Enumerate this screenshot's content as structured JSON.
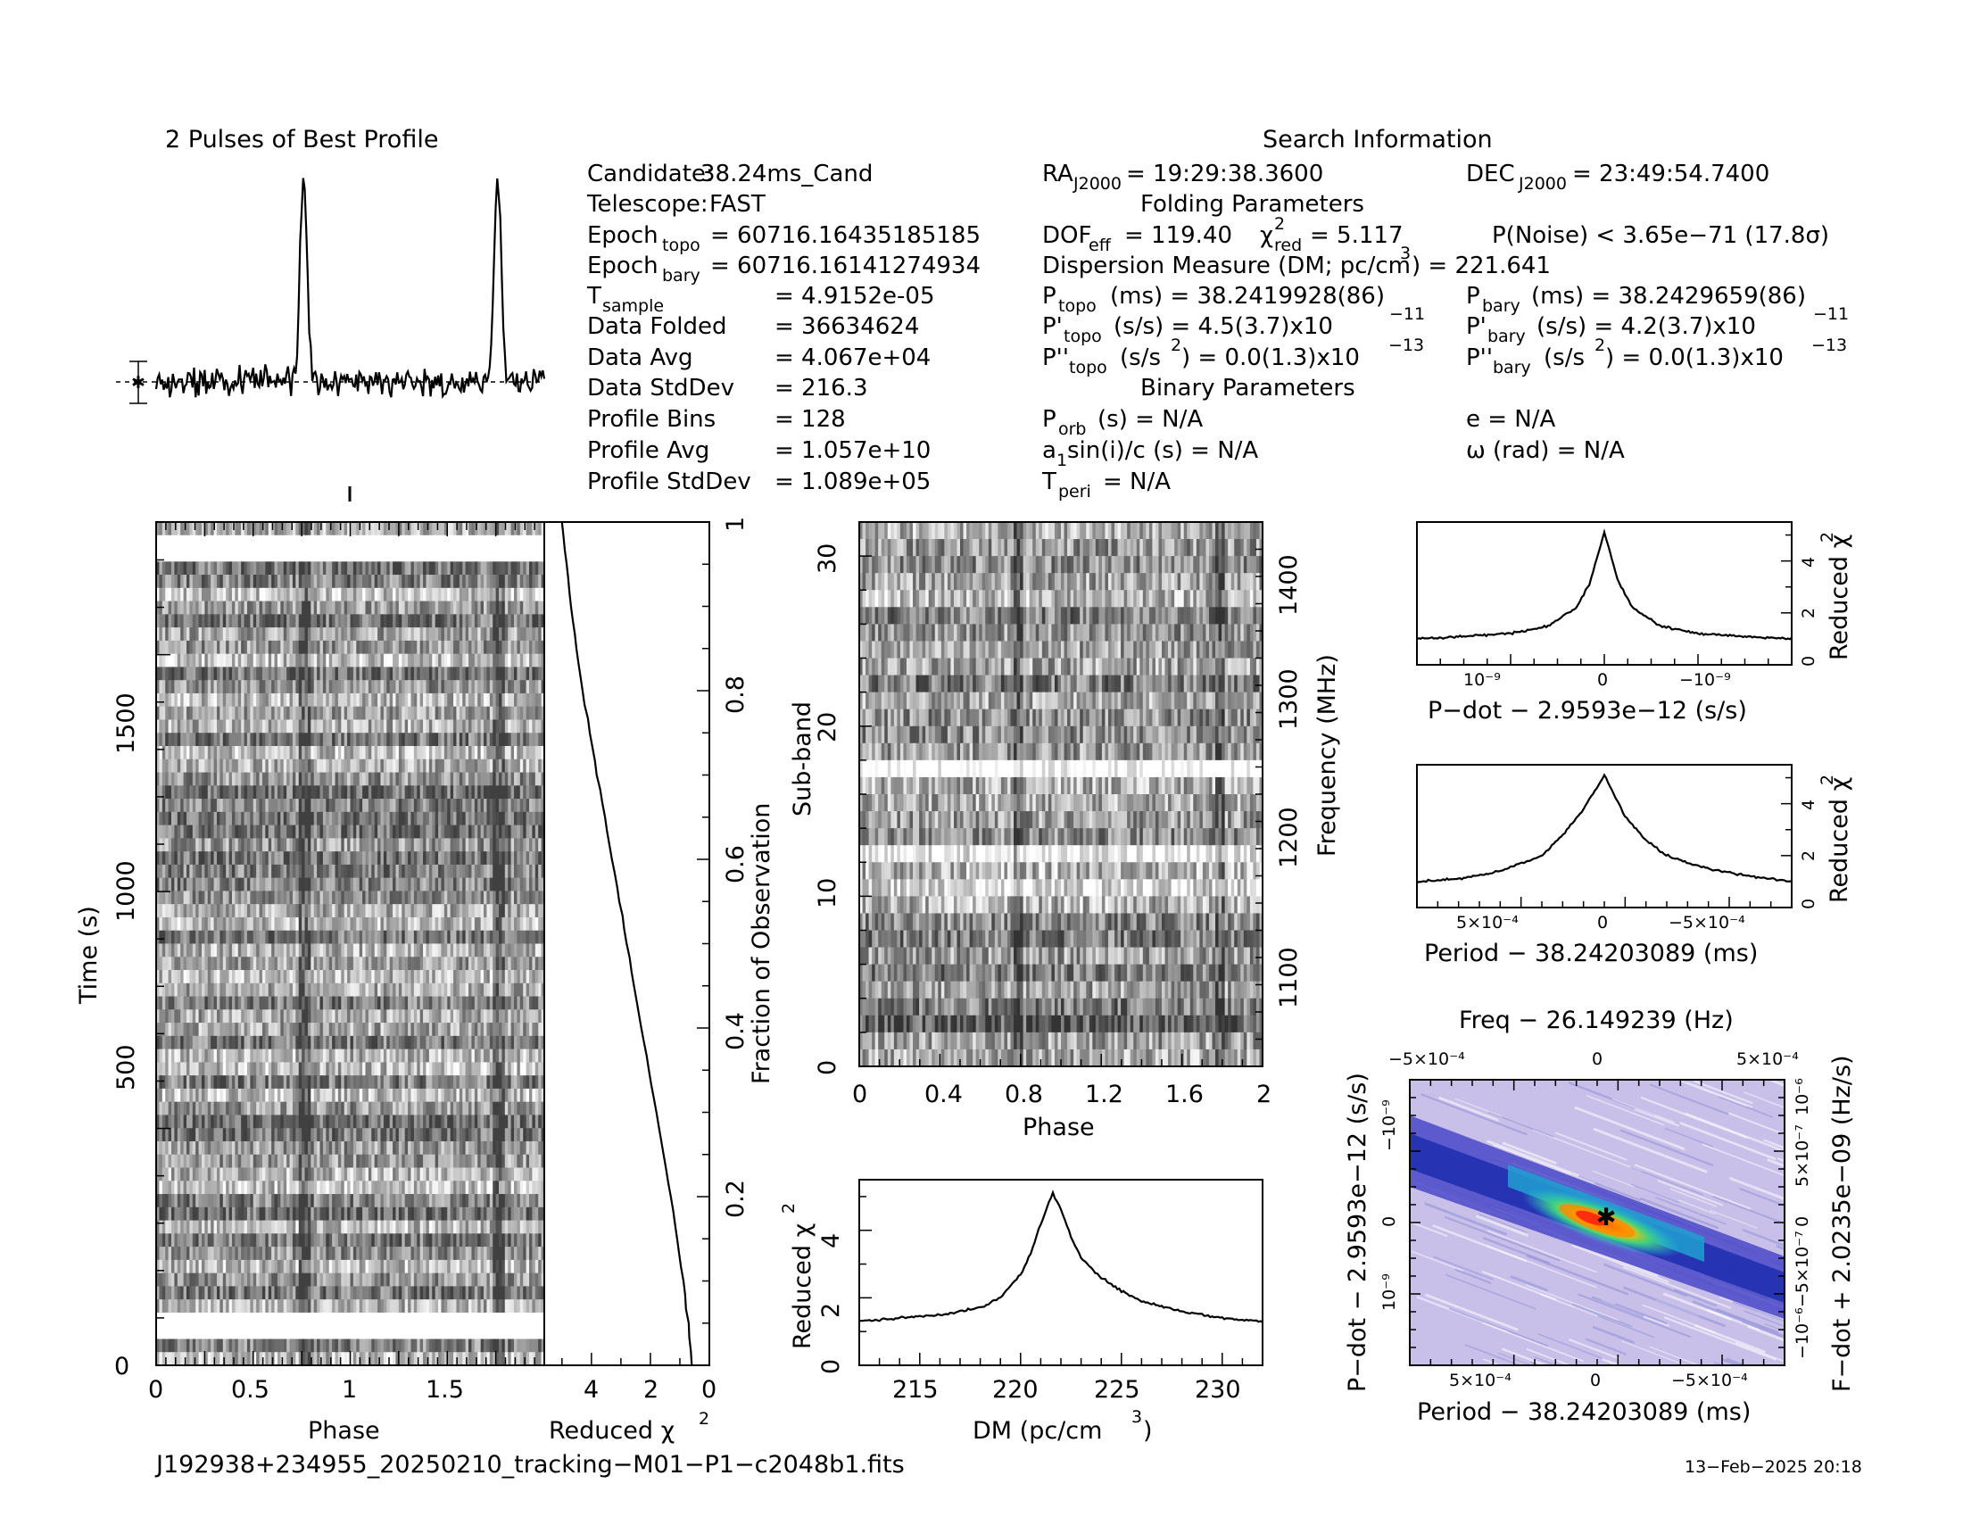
{
  "profile": {
    "title": "2 Pulses of Best Profile"
  },
  "info": {
    "heading": "Search Information",
    "folding_heading": "Folding Parameters",
    "binary_heading": "Binary Parameters",
    "candidate_label": "Candidate:",
    "candidate_value": "38.24ms_Cand",
    "telescope_label": "Telescope:",
    "telescope_value": "FAST",
    "epoch_topo_label": "Epoch",
    "epoch_topo_sub": "topo",
    "epoch_topo_value": "= 60716.16435185185",
    "epoch_bary_label": "Epoch",
    "epoch_bary_sub": "bary",
    "epoch_bary_value": "= 60716.16141274934",
    "tsample_label": "T",
    "tsample_sub": "sample",
    "tsample_value": "=   4.9152e-05",
    "data_folded_label": "Data Folded",
    "data_folded_value": "=   36634624",
    "data_avg_label": "Data Avg",
    "data_avg_value": "=   4.067e+04",
    "data_stddev_label": "Data StdDev",
    "data_stddev_value": "=   216.3",
    "profile_bins_label": "Profile Bins",
    "profile_bins_value": "=   128",
    "profile_avg_label": "Profile Avg",
    "profile_avg_value": "=   1.057e+10",
    "profile_stddev_label": "Profile StdDev",
    "profile_stddev_value": "=   1.089e+05",
    "ra_label": "RA",
    "ra_sub": "J2000",
    "ra_value": "= 19:29:38.3600",
    "dec_label": "DEC",
    "dec_sub": "J2000",
    "dec_value": "= 23:49:54.7400",
    "dof_label": "DOF",
    "dof_sub": "eff",
    "dof_value": "= 119.40",
    "chi_label": "χ",
    "chi_sup": "2",
    "chi_sub": "red",
    "chi_value": "= 5.117",
    "pnoise": "P(Noise) < 3.65e−71   (17.8σ)",
    "dm_text": "Dispersion Measure (DM; pc/cm",
    "dm_sup": "3",
    "dm_value": ") = 221.641",
    "ptopo_label": "P",
    "ptopo_sub": "topo",
    "ptopo_value": "(ms) =   38.2419928(86)",
    "pbary_label": "P",
    "pbary_sub": "bary",
    "pbary_value": "(ms) =   38.2429659(86)",
    "pdtopo_label": "P'",
    "pdtopo_sub": "topo",
    "pdtopo_value": "(s/s) =   4.5(3.7)x10",
    "pdtopo_exp": "−11",
    "pdbary_label": "P'",
    "pdbary_sub": "bary",
    "pdbary_value": "(s/s) =   4.2(3.7)x10",
    "pdbary_exp": "−11",
    "pddtopo_label": "P''",
    "pddtopo_sub": "topo",
    "pddtopo_value": "(s/s",
    "pddtopo_sup": "2",
    "pddtopo_rest": ") = 0.0(1.3)x10",
    "pddtopo_exp": "−13",
    "pddbary_label": "P''",
    "pddbary_sub": "bary",
    "pddbary_value": "(s/s",
    "pddbary_sup": "2",
    "pddbary_rest": ") = 0.0(1.3)x10",
    "pddbary_exp": "−13",
    "porb_label": "P",
    "porb_sub": "orb",
    "porb_value": "(s) = N/A",
    "e_value": "e = N/A",
    "asini_label": "a",
    "asini_sub": "1",
    "asini_value": "sin(i)/c (s) = N/A",
    "omega_value": "ω (rad) = N/A",
    "tperi_label": "T",
    "tperi_sub": "peri",
    "tperi_value": "= N/A"
  },
  "time_phase": {
    "ylabel": "Time (s)",
    "xlabel": "Phase",
    "yticks": [
      "0",
      "500",
      "1000",
      "1500"
    ],
    "xticks": [
      "0",
      "0.5",
      "1",
      "1.5"
    ]
  },
  "chi_time": {
    "xlabel": "Reduced χ",
    "xlabel_sup": "2",
    "xticks": [
      "4",
      "2",
      "0"
    ],
    "right_label": "Fraction of Observation",
    "right_ticks": [
      "0.2",
      "0.4",
      "0.6",
      "0.8",
      "1"
    ]
  },
  "subband": {
    "ylabel": "Sub-band",
    "xlabel": "Phase",
    "yticks": [
      "0",
      "10",
      "20",
      "30"
    ],
    "xticks": [
      "0",
      "0.4",
      "0.8",
      "1.2",
      "1.6",
      "2"
    ],
    "right_label": "Frequency (MHz)",
    "right_ticks": [
      "1100",
      "1200",
      "1300",
      "1400"
    ]
  },
  "dm_plot": {
    "ylabel": "Reduced χ",
    "ylabel_sup": "2",
    "xlabel": "DM (pc/cm",
    "xlabel_sup": "3",
    "xlabel_end": ")",
    "xticks": [
      "215",
      "220",
      "225",
      "230"
    ],
    "yticks": [
      "0",
      "2",
      "4"
    ]
  },
  "pdot_plot": {
    "xlabel": "P−dot − 2.9593e−12 (s/s)",
    "ylabel": "Reduced χ",
    "ylabel_sup": "2",
    "xticks": [
      "10⁻⁹",
      "0",
      "−10⁻⁹"
    ],
    "yticks": [
      "0",
      "2",
      "4"
    ]
  },
  "period_plot": {
    "xlabel": "Period − 38.24203089 (ms)",
    "ylabel": "Reduced χ",
    "ylabel_sup": "2",
    "xticks": [
      "5×10⁻⁴",
      "0",
      "−5×10⁻⁴"
    ],
    "yticks": [
      "0",
      "2",
      "4"
    ]
  },
  "ppdot": {
    "top_label": "Freq − 26.149239 (Hz)",
    "top_ticks": [
      "−5×10⁻⁴",
      "0",
      "5×10⁻⁴"
    ],
    "xlabel": "Period − 38.24203089 (ms)",
    "xticks": [
      "5×10⁻⁴",
      "0",
      "−5×10⁻⁴"
    ],
    "ylabel": "P−dot − 2.9593e−12 (s/s)",
    "yticks": [
      "10⁻⁹",
      "0",
      "−10⁻⁹"
    ],
    "right_label": "F−dot + 2.0235e−09 (Hz/s)",
    "right_ticks": [
      "−10⁻⁶",
      "−5×10⁻⁷",
      "0",
      "5×10⁻⁷",
      "10⁻⁶"
    ]
  },
  "footer": {
    "filename": "J192938+234955_20250210_tracking−M01−P1−c2048b1.fits",
    "date": "13−Feb−2025 20:18"
  },
  "chart_data": [
    {
      "type": "line",
      "title": "2 Pulses of Best Profile",
      "x_range": [
        0,
        2
      ],
      "peaks_at_phase": [
        0.76,
        1.76
      ],
      "description_values": {
        "peak_height_rel": 1.0,
        "baseline_rel": 0.0
      }
    },
    {
      "type": "heatmap",
      "title": "Time vs Phase",
      "xlabel": "Phase",
      "ylabel": "Time (s)",
      "xlim": [
        0,
        2
      ],
      "ylim": [
        0,
        1780
      ],
      "pulse_phase": [
        0.76,
        1.76
      ]
    },
    {
      "type": "line",
      "xlabel": "Reduced χ2",
      "ylabel": "Fraction of Observation",
      "x": [
        0.6,
        0.7,
        0.9,
        1.3,
        1.8,
        2.3,
        2.8,
        3.3,
        3.8,
        4.3,
        4.7,
        5.0
      ],
      "y": [
        0.0,
        0.05,
        0.1,
        0.2,
        0.3,
        0.4,
        0.5,
        0.6,
        0.7,
        0.8,
        0.9,
        1.0
      ]
    },
    {
      "type": "heatmap",
      "xlabel": "Phase",
      "ylabel": "Sub-band",
      "xlim": [
        0,
        2
      ],
      "ylim": [
        0,
        32
      ],
      "freq_range_mhz": [
        1050,
        1450
      ],
      "pulse_phase": [
        0.78,
        1.78
      ]
    },
    {
      "type": "line",
      "xlabel": "DM (pc/cm3)",
      "ylabel": "Reduced χ2",
      "xlim": [
        212,
        232
      ],
      "ylim": [
        0,
        5.5
      ],
      "x": [
        212,
        214,
        216,
        218,
        219,
        220,
        220.5,
        221,
        221.6,
        222,
        222.5,
        223,
        224,
        225,
        226,
        228,
        230,
        232
      ],
      "y": [
        1.3,
        1.4,
        1.5,
        1.7,
        2.0,
        2.7,
        3.3,
        4.2,
        5.1,
        4.6,
        3.8,
        3.2,
        2.6,
        2.2,
        1.9,
        1.6,
        1.4,
        1.3
      ]
    },
    {
      "type": "line",
      "xlabel": "P−dot − 2.9593e−12 (s/s)",
      "ylabel": "Reduced χ2",
      "ylim": [
        0,
        5.5
      ],
      "x": [
        -2.0,
        -1.5,
        -1.0,
        -0.6,
        -0.3,
        -0.15,
        0.0,
        0.15,
        0.3,
        0.6,
        1.0,
        1.5,
        2.0
      ],
      "y": [
        1.0,
        1.1,
        1.2,
        1.5,
        2.2,
        3.2,
        5.1,
        3.2,
        2.2,
        1.5,
        1.2,
        1.1,
        1.0
      ]
    },
    {
      "type": "line",
      "xlabel": "Period − 38.24203089 (ms)",
      "ylabel": "Reduced χ2",
      "ylim": [
        0,
        5.5
      ],
      "x": [
        -0.0009,
        -0.0007,
        -0.0005,
        -0.0003,
        -0.0002,
        -0.0001,
        0.0,
        0.0001,
        0.0002,
        0.0003,
        0.0005,
        0.0007,
        0.0009
      ],
      "y": [
        1.0,
        1.2,
        1.5,
        2.0,
        2.6,
        3.5,
        5.1,
        3.8,
        2.8,
        2.0,
        1.4,
        1.1,
        1.0
      ]
    },
    {
      "type": "heatmap",
      "title": "Freq − 26.149239 (Hz)",
      "xlabel": "Period − 38.24203089 (ms)",
      "ylabel": "P−dot − 2.9593e−12 (s/s)",
      "peak": [
        0.0,
        0.0
      ]
    }
  ]
}
